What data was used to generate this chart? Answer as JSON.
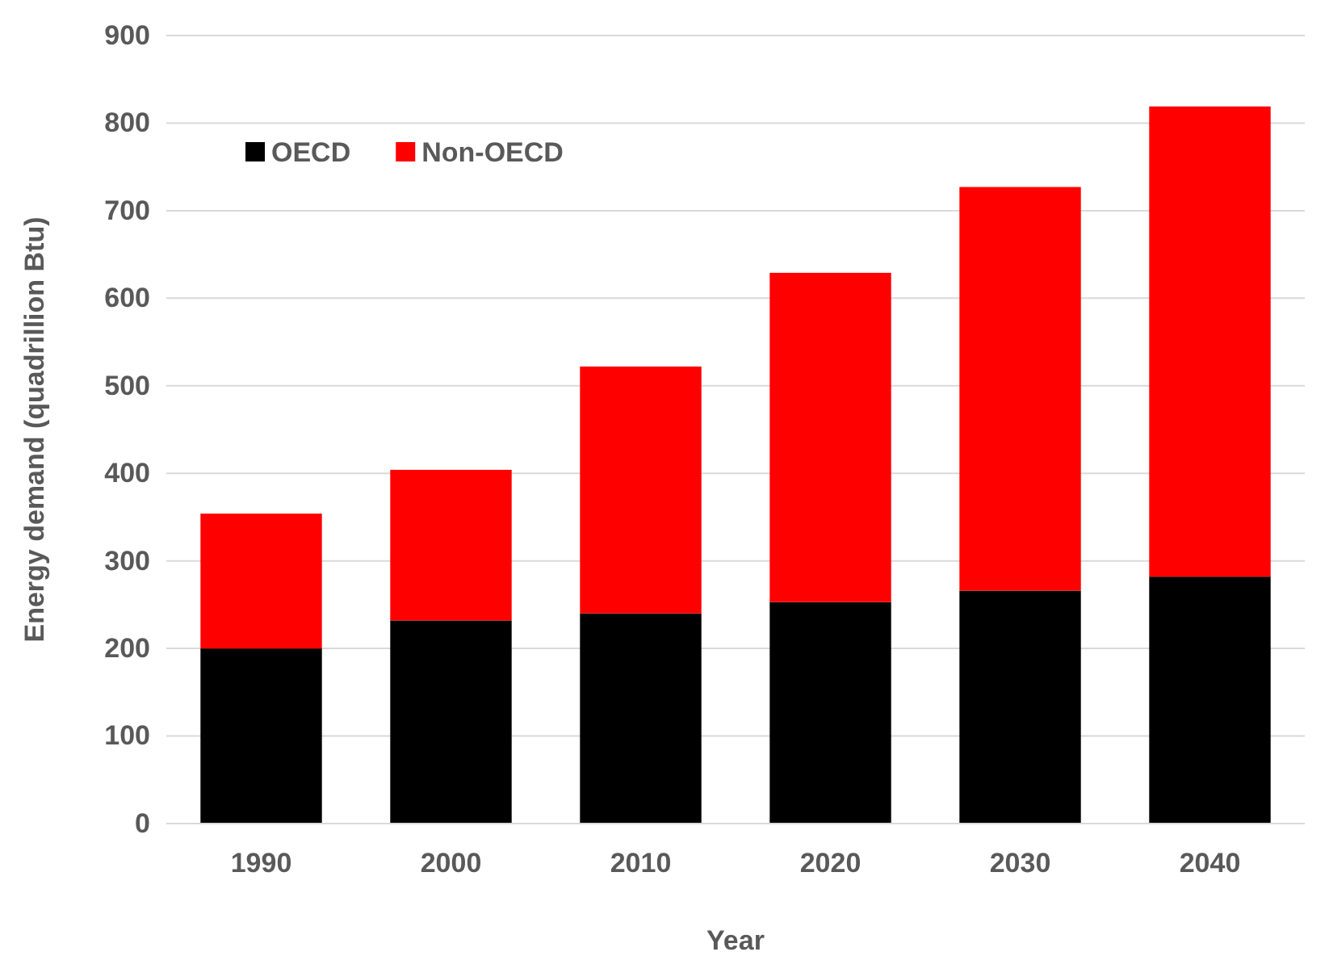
{
  "chart_data": {
    "type": "bar",
    "stacked": true,
    "xlabel": "Year",
    "ylabel": "Energy demand (quadrillion Btu)",
    "categories": [
      "1990",
      "2000",
      "2010",
      "2020",
      "2030",
      "2040"
    ],
    "series": [
      {
        "name": "OECD",
        "color": "#000000",
        "values": [
          200,
          232,
          240,
          253,
          266,
          282
        ]
      },
      {
        "name": "Non-OECD",
        "color": "#ff0000",
        "values": [
          154,
          172,
          282,
          376,
          461,
          537
        ]
      }
    ],
    "ylim": [
      0,
      900
    ],
    "yticks": [
      0,
      100,
      200,
      300,
      400,
      500,
      600,
      700,
      800,
      900
    ],
    "grid": "y",
    "legend": "top left"
  }
}
